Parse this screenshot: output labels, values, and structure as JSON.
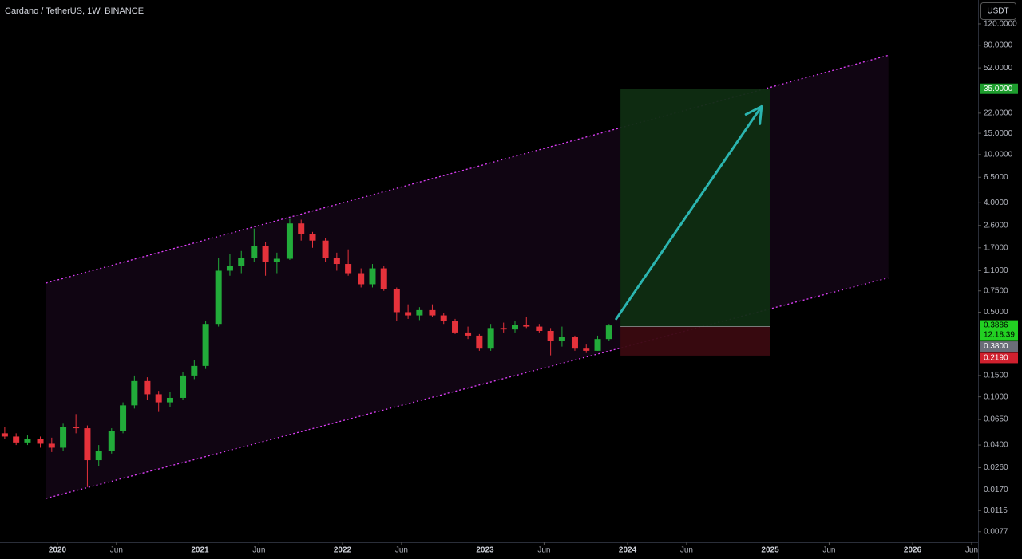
{
  "chart_data": {
    "type": "candlestick",
    "title": "Cardano / TetherUS, 1W, BINANCE",
    "currency": "USDT",
    "countdown": "12:18:39",
    "log_y": true,
    "grid": false,
    "up_color": "#22ab3a",
    "down_color": "#e5323b",
    "xlim": [
      2019.597,
      2026.459
    ],
    "ylim": [
      0.0063,
      189
    ],
    "xticks": [
      {
        "value": 2020,
        "label": "2020"
      },
      {
        "value": 2020.414,
        "label": "Jun"
      },
      {
        "value": 2021,
        "label": "2021"
      },
      {
        "value": 2021.414,
        "label": "Jun"
      },
      {
        "value": 2022,
        "label": "2022"
      },
      {
        "value": 2022.414,
        "label": "Jun"
      },
      {
        "value": 2023,
        "label": "2023"
      },
      {
        "value": 2023.414,
        "label": "Jun"
      },
      {
        "value": 2024,
        "label": "2024"
      },
      {
        "value": 2024.414,
        "label": "Jun"
      },
      {
        "value": 2025,
        "label": "2025"
      },
      {
        "value": 2025.414,
        "label": "Jun"
      },
      {
        "value": 2026,
        "label": "2026"
      },
      {
        "value": 2026.414,
        "label": "Jun"
      }
    ],
    "yticks": [
      {
        "value": 120,
        "label": "120.0000"
      },
      {
        "value": 80,
        "label": "80.0000"
      },
      {
        "value": 52,
        "label": "52.0000"
      },
      {
        "value": 22,
        "label": "22.0000"
      },
      {
        "value": 15,
        "label": "15.0000"
      },
      {
        "value": 10,
        "label": "10.0000"
      },
      {
        "value": 6.5,
        "label": "6.5000"
      },
      {
        "value": 4,
        "label": "4.0000"
      },
      {
        "value": 2.6,
        "label": "2.6000"
      },
      {
        "value": 1.7,
        "label": "1.7000"
      },
      {
        "value": 1.1,
        "label": "1.1000"
      },
      {
        "value": 0.75,
        "label": "0.7500"
      },
      {
        "value": 0.5,
        "label": "0.5000"
      },
      {
        "value": 0.15,
        "label": "0.1500"
      },
      {
        "value": 0.1,
        "label": "0.1000"
      },
      {
        "value": 0.065,
        "label": "0.0650"
      },
      {
        "value": 0.04,
        "label": "0.0400"
      },
      {
        "value": 0.026,
        "label": "0.0260"
      },
      {
        "value": 0.017,
        "label": "0.0170"
      },
      {
        "value": 0.0115,
        "label": "0.0115"
      },
      {
        "value": 0.0077,
        "label": "0.0077"
      }
    ],
    "x": [
      2019.63,
      2019.71,
      2019.79,
      2019.88,
      2019.96,
      2020.04,
      2020.13,
      2020.21,
      2020.29,
      2020.38,
      2020.46,
      2020.54,
      2020.63,
      2020.71,
      2020.79,
      2020.88,
      2020.96,
      2021.04,
      2021.13,
      2021.21,
      2021.29,
      2021.38,
      2021.46,
      2021.54,
      2021.63,
      2021.71,
      2021.79,
      2021.88,
      2021.96,
      2022.04,
      2022.13,
      2022.21,
      2022.29,
      2022.38,
      2022.46,
      2022.54,
      2022.63,
      2022.71,
      2022.79,
      2022.88,
      2022.96,
      2023.04,
      2023.13,
      2023.21,
      2023.29,
      2023.38,
      2023.46,
      2023.54,
      2023.63,
      2023.71,
      2023.79,
      2023.87
    ],
    "open": [
      0.05,
      0.047,
      0.042,
      0.045,
      0.041,
      0.038,
      0.056,
      0.055,
      0.03,
      0.036,
      0.052,
      0.085,
      0.135,
      0.105,
      0.09,
      0.098,
      0.15,
      0.18,
      0.4,
      1.1,
      1.2,
      1.4,
      1.75,
      1.3,
      1.38,
      2.7,
      2.2,
      1.95,
      1.4,
      1.25,
      1.05,
      0.85,
      1.15,
      0.78,
      0.5,
      0.47,
      0.52,
      0.47,
      0.42,
      0.34,
      0.32,
      0.25,
      0.37,
      0.36,
      0.39,
      0.38,
      0.35,
      0.29,
      0.31,
      0.25,
      0.24,
      0.3
    ],
    "high": [
      0.056,
      0.05,
      0.048,
      0.047,
      0.046,
      0.06,
      0.072,
      0.058,
      0.04,
      0.055,
      0.09,
      0.15,
      0.145,
      0.112,
      0.11,
      0.16,
      0.2,
      0.42,
      1.4,
      1.5,
      1.6,
      2.45,
      1.9,
      1.55,
      2.95,
      2.9,
      2.3,
      2.05,
      1.55,
      1.65,
      1.15,
      1.25,
      1.2,
      0.8,
      0.58,
      0.55,
      0.58,
      0.49,
      0.44,
      0.38,
      0.33,
      0.4,
      0.41,
      0.42,
      0.46,
      0.4,
      0.37,
      0.38,
      0.32,
      0.27,
      0.32,
      0.4
    ],
    "low": [
      0.045,
      0.04,
      0.04,
      0.038,
      0.035,
      0.036,
      0.05,
      0.018,
      0.027,
      0.034,
      0.05,
      0.08,
      0.095,
      0.075,
      0.082,
      0.095,
      0.14,
      0.17,
      0.38,
      1.0,
      1.05,
      1.3,
      1.0,
      1.05,
      1.35,
      1.95,
      1.7,
      1.3,
      1.1,
      1.0,
      0.8,
      0.8,
      0.75,
      0.42,
      0.44,
      0.43,
      0.46,
      0.4,
      0.33,
      0.3,
      0.24,
      0.24,
      0.34,
      0.34,
      0.37,
      0.34,
      0.22,
      0.26,
      0.24,
      0.23,
      0.24,
      0.29
    ],
    "close": [
      0.047,
      0.042,
      0.045,
      0.041,
      0.038,
      0.056,
      0.055,
      0.03,
      0.036,
      0.052,
      0.085,
      0.135,
      0.105,
      0.09,
      0.098,
      0.15,
      0.18,
      0.4,
      1.1,
      1.2,
      1.4,
      1.75,
      1.3,
      1.38,
      2.7,
      2.2,
      1.95,
      1.4,
      1.25,
      1.05,
      0.85,
      1.15,
      0.78,
      0.5,
      0.47,
      0.52,
      0.47,
      0.42,
      0.34,
      0.32,
      0.25,
      0.37,
      0.36,
      0.39,
      0.38,
      0.35,
      0.29,
      0.31,
      0.25,
      0.24,
      0.3,
      0.3886
    ],
    "last_price": 0.3886,
    "channel": {
      "x": [
        2019.92,
        2025.83
      ],
      "upper": [
        0.87,
        66
      ],
      "lower": [
        0.0145,
        0.96
      ],
      "color": "#e040fb"
    },
    "position": {
      "x": [
        2023.95,
        2025.0
      ],
      "target": {
        "value": 35,
        "label": "35.0000"
      },
      "entry": {
        "value": 0.38,
        "label": "0.3800"
      },
      "stop": {
        "value": 0.219,
        "label": "0.2190"
      }
    },
    "arrow": {
      "x": [
        2023.92,
        2024.94
      ],
      "y": [
        0.44,
        25
      ],
      "color": "#2bb5b0"
    }
  }
}
